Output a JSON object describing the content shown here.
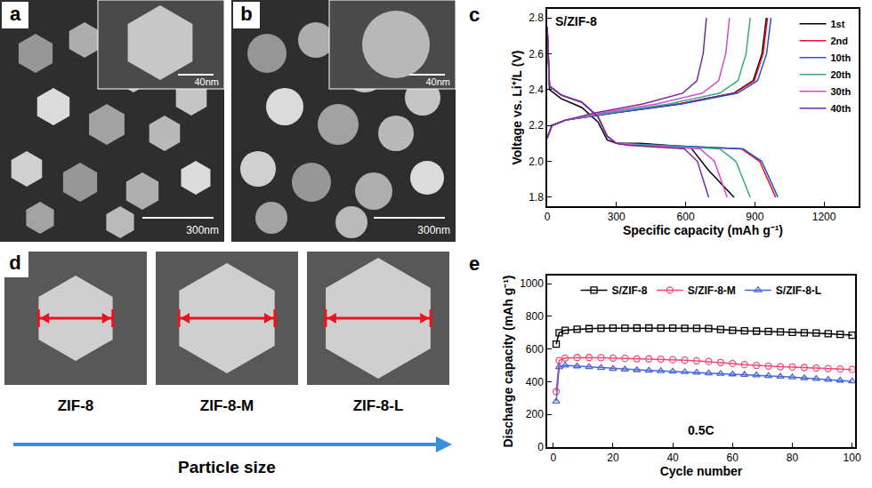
{
  "panels": {
    "a": {
      "label": "a",
      "scale_bar": "300nm",
      "inset_scale_bar": "40nm"
    },
    "b": {
      "label": "b",
      "scale_bar": "300nm",
      "inset_scale_bar": "40nm"
    },
    "d": {
      "label": "d",
      "items": [
        "ZIF-8",
        "ZIF-8-M",
        "ZIF-8-L"
      ],
      "axis_label": "Particle size"
    }
  },
  "chart_data": [
    {
      "label": "c",
      "type": "line",
      "title": "S/ZIF-8",
      "x_label": "Specific capacity (mAh g⁻¹)",
      "y_label": "Voltage vs. Li⁺/L (V)",
      "xlim": [
        0,
        1350
      ],
      "xticks": [
        0,
        300,
        600,
        900,
        1200
      ],
      "ylim": [
        1.75,
        2.85
      ],
      "yticks": [
        1.8,
        {
          "value": 2,
          "label": "2.0"
        },
        2.2,
        2.4,
        2.6,
        2.8
      ],
      "grid": false,
      "legend": "upper right",
      "series": [
        {
          "name": "1st",
          "color": "#000000",
          "x": [
            0,
            10,
            60,
            150,
            220,
            260,
            300,
            405,
            620,
            700,
            810,
            null,
            0,
            20,
            80,
            285,
            570,
            808,
            893,
            931,
            950
          ],
          "values": [
            2.75,
            2.4,
            2.35,
            2.3,
            2.22,
            2.12,
            2.1,
            2.1,
            2.08,
            1.95,
            1.8,
            null,
            2.13,
            2.2,
            2.23,
            2.27,
            2.32,
            2.38,
            2.45,
            2.6,
            2.8
          ]
        },
        {
          "name": "2nd",
          "color": "#e8141e",
          "x": [
            0,
            10,
            60,
            150,
            220,
            260,
            300,
            495,
            842,
            921,
            990,
            null,
            0,
            20,
            80,
            287,
            573,
            812,
            898,
            936,
            955
          ],
          "values": [
            2.75,
            2.42,
            2.37,
            2.33,
            2.25,
            2.14,
            2.1,
            2.09,
            2.07,
            2.0,
            1.8,
            null,
            2.13,
            2.2,
            2.23,
            2.27,
            2.32,
            2.38,
            2.45,
            2.6,
            2.8
          ]
        },
        {
          "name": "10th",
          "color": "#2b4fd6",
          "x": [
            0,
            10,
            60,
            150,
            220,
            260,
            300,
            500,
            850,
            930,
            1000,
            null,
            0,
            20,
            80,
            291,
            582,
            825,
            912,
            951,
            970
          ],
          "values": [
            2.75,
            2.42,
            2.37,
            2.33,
            2.25,
            2.14,
            2.1,
            2.09,
            2.07,
            2.0,
            1.8,
            null,
            2.13,
            2.2,
            2.23,
            2.27,
            2.32,
            2.38,
            2.45,
            2.6,
            2.8
          ]
        },
        {
          "name": "20th",
          "color": "#3aa88a",
          "x": [
            0,
            10,
            60,
            150,
            220,
            260,
            300,
            440,
            748,
            818,
            880,
            null,
            0,
            20,
            80,
            264,
            528,
            748,
            827,
            862,
            880
          ],
          "values": [
            2.75,
            2.42,
            2.37,
            2.33,
            2.25,
            2.14,
            2.1,
            2.09,
            2.07,
            2.0,
            1.8,
            null,
            2.13,
            2.2,
            2.23,
            2.27,
            2.32,
            2.38,
            2.45,
            2.6,
            2.8
          ]
        },
        {
          "name": "30th",
          "color": "#d04ccf",
          "x": [
            0,
            10,
            60,
            150,
            220,
            260,
            300,
            390,
            663,
            725,
            780,
            null,
            0,
            20,
            80,
            237,
            474,
            672,
            743,
            774,
            790
          ],
          "values": [
            2.75,
            2.42,
            2.37,
            2.33,
            2.25,
            2.14,
            2.1,
            2.09,
            2.07,
            2.0,
            1.8,
            null,
            2.13,
            2.2,
            2.23,
            2.27,
            2.32,
            2.38,
            2.45,
            2.6,
            2.8
          ]
        },
        {
          "name": "40th",
          "color": "#7a2a9a",
          "x": [
            0,
            10,
            60,
            150,
            220,
            260,
            300,
            350,
            595,
            651,
            700,
            null,
            0,
            20,
            80,
            207,
            414,
            587,
            649,
            676,
            690
          ],
          "values": [
            2.75,
            2.42,
            2.37,
            2.33,
            2.25,
            2.14,
            2.1,
            2.09,
            2.07,
            2.0,
            1.8,
            null,
            2.13,
            2.2,
            2.23,
            2.27,
            2.32,
            2.38,
            2.45,
            2.6,
            2.8
          ]
        }
      ]
    },
    {
      "label": "e",
      "type": "scatter",
      "line_style": "solid",
      "x_label": "Cycle number",
      "y_label": "Discharge capacity (mAh g⁻¹)",
      "annotations": [
        "0.5C"
      ],
      "xlim": [
        -2,
        101
      ],
      "xticks": [
        0,
        20,
        40,
        60,
        80,
        100
      ],
      "ylim": [
        0,
        1050
      ],
      "yticks": [
        0,
        200,
        400,
        600,
        800,
        1000
      ],
      "grid": false,
      "legend": "upper center",
      "x": [
        1,
        2,
        4,
        8,
        12,
        16,
        20,
        24,
        28,
        32,
        36,
        40,
        44,
        48,
        52,
        56,
        60,
        64,
        68,
        72,
        76,
        80,
        84,
        88,
        92,
        96,
        100
      ],
      "series": [
        {
          "name": "S/ZIF-8",
          "color": "#000000",
          "marker": "square-open",
          "values": [
            630,
            700,
            715,
            722,
            725,
            727,
            728,
            728,
            729,
            729,
            728,
            728,
            727,
            727,
            726,
            720,
            715,
            712,
            710,
            708,
            705,
            702,
            700,
            698,
            694,
            690,
            685
          ]
        },
        {
          "name": "S/ZIF-8-M",
          "color": "#ee4c7a",
          "marker": "circle-open",
          "values": [
            340,
            530,
            545,
            548,
            548,
            547,
            545,
            543,
            541,
            540,
            538,
            535,
            532,
            528,
            524,
            518,
            512,
            505,
            500,
            496,
            492,
            490,
            487,
            484,
            481,
            478,
            475
          ]
        },
        {
          "name": "S/ZIF-8-L",
          "color": "#4a67d8",
          "marker": "triangle-up-open",
          "values": [
            280,
            490,
            500,
            495,
            490,
            485,
            480,
            476,
            472,
            469,
            466,
            463,
            460,
            456,
            452,
            449,
            446,
            443,
            440,
            436,
            432,
            428,
            423,
            418,
            413,
            408,
            403
          ]
        }
      ]
    }
  ]
}
